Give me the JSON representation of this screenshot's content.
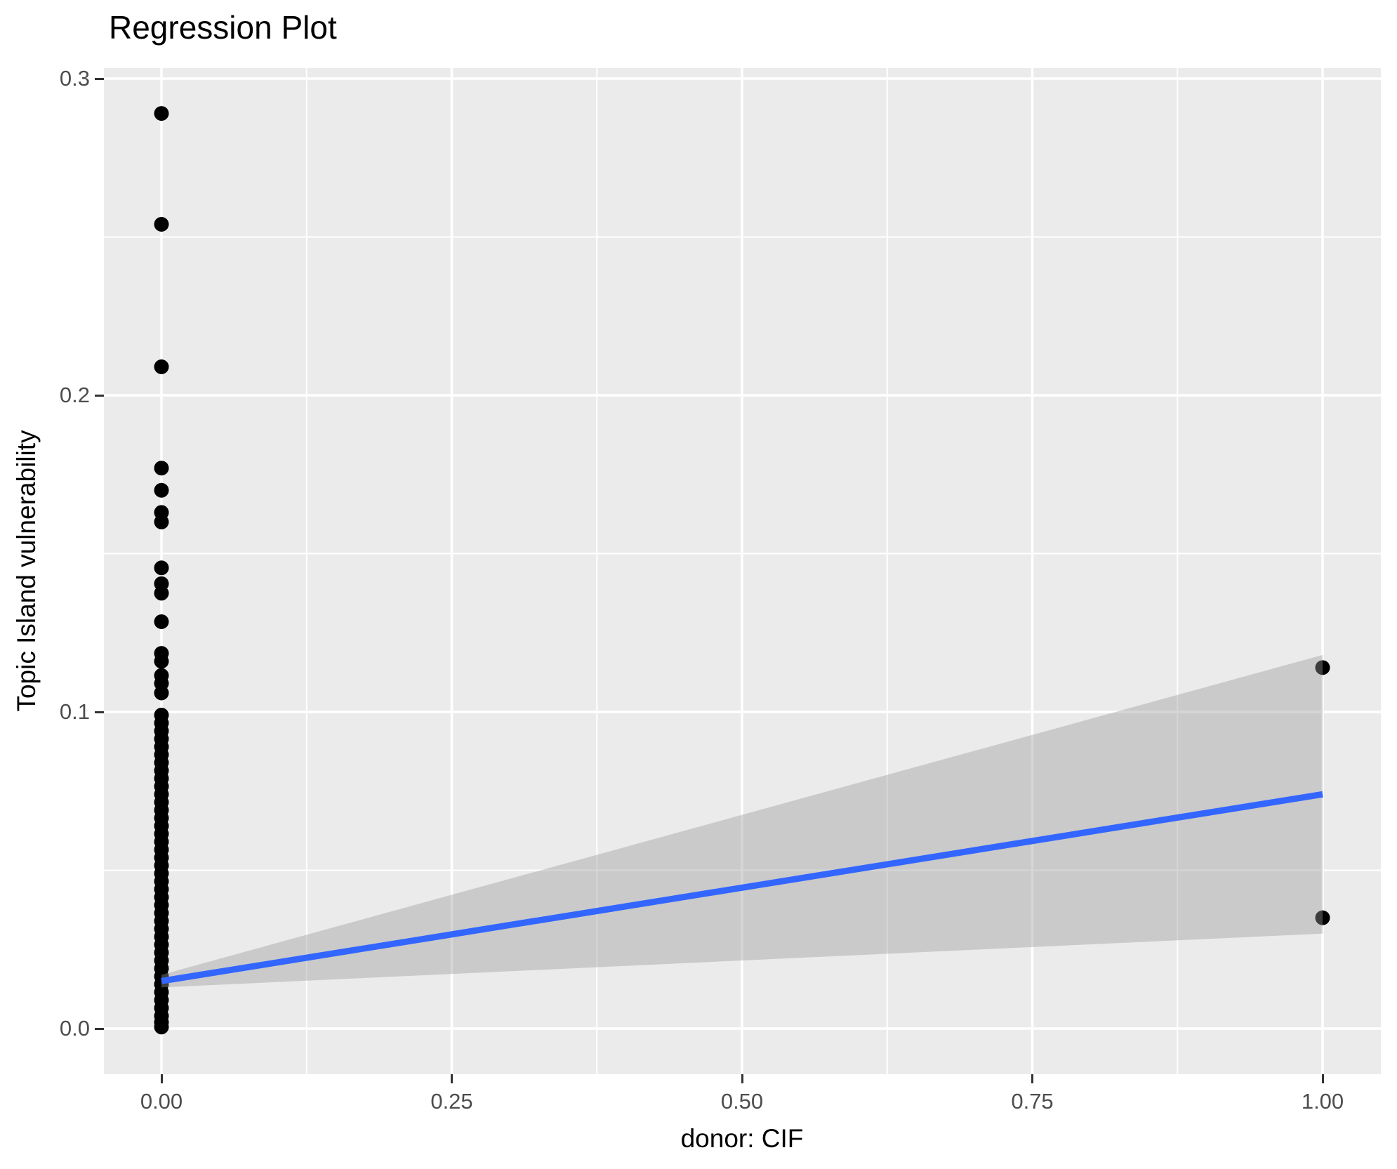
{
  "chart_data": {
    "type": "scatter",
    "title": "Regression Plot",
    "xlabel": "donor: CIF",
    "ylabel": "Topic Island vulnerability",
    "legend": "none",
    "grid": "major+minor",
    "xlim": [
      -0.05,
      1.05
    ],
    "ylim": [
      -0.0145,
      0.3045
    ],
    "x_ticks": {
      "major_values": [
        0.0,
        0.25,
        0.5,
        0.75,
        1.0
      ],
      "major_labels": [
        "0.00",
        "0.25",
        "0.50",
        "0.75",
        "1.00"
      ],
      "minor_values": [
        0.125,
        0.375,
        0.625,
        0.875
      ]
    },
    "y_ticks": {
      "major_values": [
        0.0,
        0.1,
        0.2,
        0.3
      ],
      "major_labels": [
        "0.0",
        "0.1",
        "0.2",
        "0.3"
      ],
      "minor_values": [
        0.05,
        0.15,
        0.25
      ]
    },
    "points": [
      [
        0,
        0.289
      ],
      [
        0,
        0.254
      ],
      [
        0,
        0.209
      ],
      [
        0,
        0.177
      ],
      [
        0,
        0.17
      ],
      [
        0,
        0.163
      ],
      [
        0,
        0.16
      ],
      [
        0,
        0.1455
      ],
      [
        0,
        0.1405
      ],
      [
        0,
        0.1375
      ],
      [
        0,
        0.1285
      ],
      [
        0,
        0.1185
      ],
      [
        0,
        0.116
      ],
      [
        0,
        0.1115
      ],
      [
        0,
        0.109
      ],
      [
        0,
        0.106
      ],
      [
        0,
        0.099
      ],
      [
        0,
        0.0965
      ],
      [
        0,
        0.094
      ],
      [
        0,
        0.0915
      ],
      [
        0,
        0.089
      ],
      [
        0,
        0.0865
      ],
      [
        0,
        0.084
      ],
      [
        0,
        0.0815
      ],
      [
        0,
        0.079
      ],
      [
        0,
        0.0765
      ],
      [
        0,
        0.074
      ],
      [
        0,
        0.0715
      ],
      [
        0,
        0.069
      ],
      [
        0,
        0.0665
      ],
      [
        0,
        0.064
      ],
      [
        0,
        0.0615
      ],
      [
        0,
        0.059
      ],
      [
        0,
        0.0565
      ],
      [
        0,
        0.054
      ],
      [
        0,
        0.0515
      ],
      [
        0,
        0.049
      ],
      [
        0,
        0.0465
      ],
      [
        0,
        0.044
      ],
      [
        0,
        0.0415
      ],
      [
        0,
        0.039
      ],
      [
        0,
        0.0365
      ],
      [
        0,
        0.034
      ],
      [
        0,
        0.0315
      ],
      [
        0,
        0.029
      ],
      [
        0,
        0.0265
      ],
      [
        0,
        0.024
      ],
      [
        0,
        0.0215
      ],
      [
        0,
        0.019
      ],
      [
        0,
        0.0165
      ],
      [
        0,
        0.014
      ],
      [
        0,
        0.0115
      ],
      [
        0,
        0.009
      ],
      [
        0,
        0.0065
      ],
      [
        0,
        0.004
      ],
      [
        0,
        0.002
      ],
      [
        0,
        0.0005
      ],
      [
        1,
        0.114
      ],
      [
        1,
        0.035
      ]
    ],
    "regression_line": {
      "x": [
        0,
        1
      ],
      "y": [
        0.015,
        0.074
      ]
    },
    "confidence_band": {
      "x": [
        0,
        1
      ],
      "upper": [
        0.017,
        0.118
      ],
      "lower": [
        0.013,
        0.03
      ],
      "opacity": 0.4
    },
    "colors": {
      "plot_background": "#FFFFFF",
      "panel_background": "#EBEBEB",
      "gridline": "#FFFFFF",
      "point": "#000000",
      "regression_line": "#3366FF",
      "confidence_band_fill": "#999999",
      "tick_label": "#4D4D4D",
      "tick_mark": "#333333",
      "title_text": "#000000"
    }
  }
}
